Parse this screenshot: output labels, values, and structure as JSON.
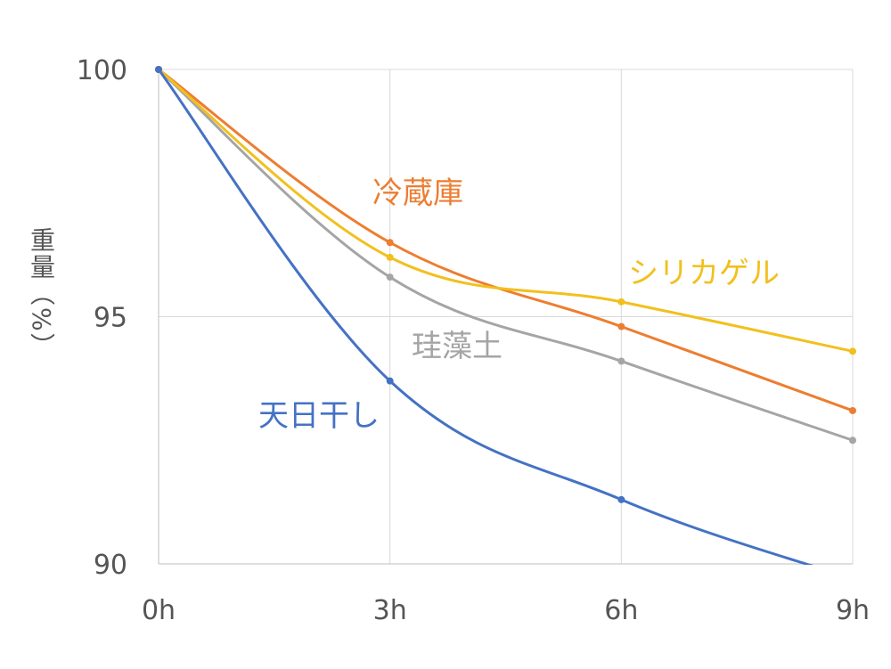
{
  "chart_data": {
    "type": "line",
    "title": "",
    "xlabel": "",
    "ylabel": "重量（%）",
    "categories": [
      "0h",
      "3h",
      "6h",
      "9h"
    ],
    "ylim": [
      90,
      100
    ],
    "yticks": [
      "100",
      "95",
      "90"
    ],
    "grid": true,
    "legend": "inline labels",
    "series": [
      {
        "name": "天日干し",
        "color": "#4472C4",
        "values": [
          100,
          93.7,
          91.3,
          89.7
        ]
      },
      {
        "name": "冷蔵庫",
        "color": "#ED7D31",
        "values": [
          100,
          96.5,
          94.8,
          93.1
        ]
      },
      {
        "name": "シリカゲル",
        "color": "#F2C01E",
        "values": [
          100,
          96.2,
          95.3,
          94.3
        ]
      },
      {
        "name": "珪藻土",
        "color": "#A5A5A5",
        "values": [
          100,
          95.8,
          94.1,
          92.5
        ]
      }
    ]
  }
}
